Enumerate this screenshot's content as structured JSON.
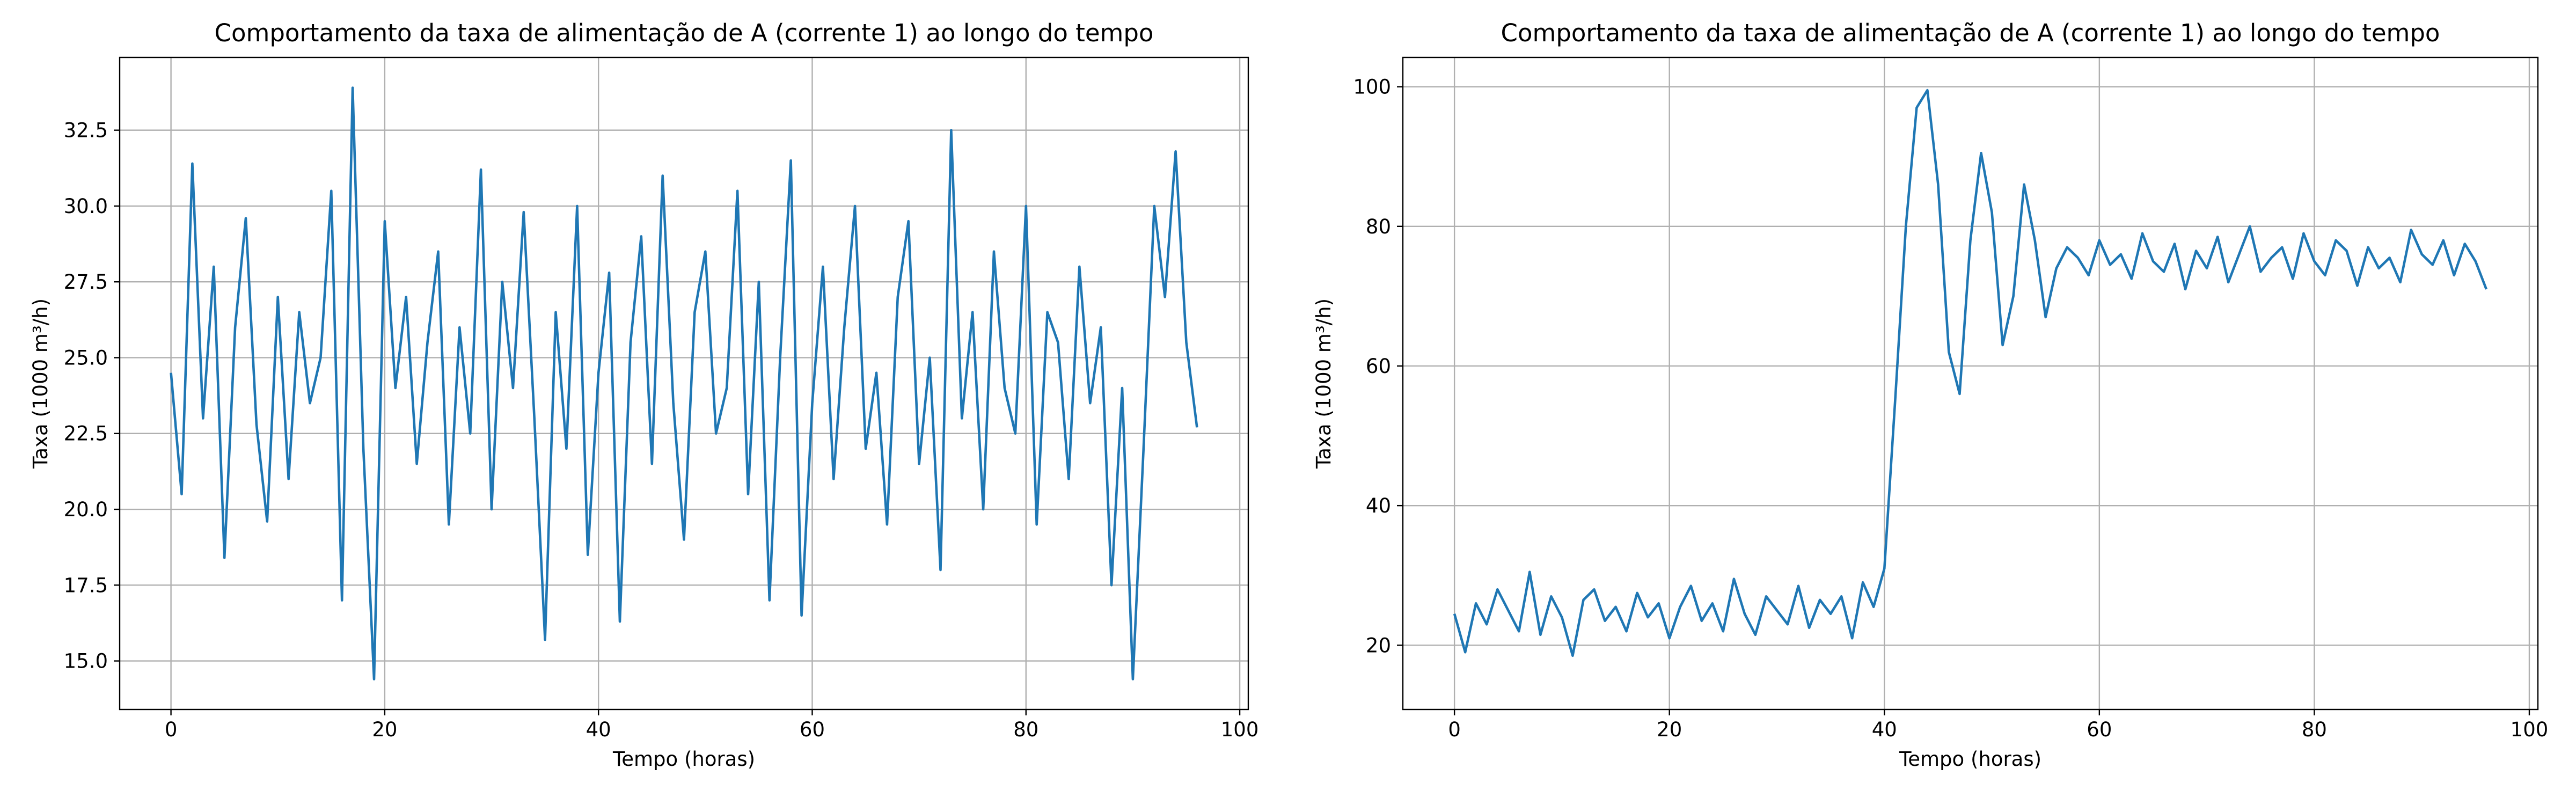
{
  "chart_data": [
    {
      "type": "line",
      "title": "Comportamento da taxa de alimentação de A (corrente 1) ao longo do tempo",
      "xlabel": "Tempo (horas)",
      "ylabel": "Taxa (1000 m³/h)",
      "x": [
        0,
        1,
        2,
        3,
        4,
        5,
        6,
        7,
        8,
        9,
        10,
        11,
        12,
        13,
        14,
        15,
        16,
        17,
        18,
        19,
        20,
        21,
        22,
        23,
        24,
        25,
        26,
        27,
        28,
        29,
        30,
        31,
        32,
        33,
        34,
        35,
        36,
        37,
        38,
        39,
        40,
        41,
        42,
        43,
        44,
        45,
        46,
        47,
        48,
        49,
        50,
        51,
        52,
        53,
        54,
        55,
        56,
        57,
        58,
        59,
        60,
        61,
        62,
        63,
        64,
        65,
        66,
        67,
        68,
        69,
        70,
        71,
        72,
        73,
        74,
        75,
        76,
        77,
        78,
        79,
        80,
        81,
        82,
        83,
        84,
        85,
        86,
        87,
        88,
        89,
        90,
        91,
        92,
        93,
        94,
        95,
        96
      ],
      "series": [
        {
          "color": "#1f77b4",
          "values": [
            24.5,
            20.5,
            31.4,
            23.0,
            28.0,
            18.4,
            26.0,
            29.6,
            22.8,
            19.6,
            27.0,
            21.0,
            26.5,
            23.5,
            25.0,
            30.5,
            17.0,
            33.9,
            22.0,
            14.4,
            29.5,
            24.0,
            27.0,
            21.5,
            25.5,
            28.5,
            19.5,
            26.0,
            22.5,
            31.2,
            20.0,
            27.5,
            24.0,
            29.8,
            23.0,
            15.7,
            26.5,
            22.0,
            30.0,
            18.5,
            24.5,
            27.8,
            16.3,
            25.5,
            29.0,
            21.5,
            31.0,
            23.5,
            19.0,
            26.5,
            28.5,
            22.5,
            24.0,
            30.5,
            20.5,
            27.5,
            17.0,
            25.0,
            31.5,
            16.5,
            23.5,
            28.0,
            21.0,
            26.0,
            30.0,
            22.0,
            24.5,
            19.5,
            27.0,
            29.5,
            21.5,
            25.0,
            18.0,
            32.5,
            23.0,
            26.5,
            20.0,
            28.5,
            24.0,
            22.5,
            30.0,
            19.5,
            26.5,
            25.5,
            21.0,
            28.0,
            23.5,
            26.0,
            17.5,
            24.0,
            14.4,
            22.0,
            30.0,
            27.0,
            31.8,
            25.5,
            22.7
          ]
        }
      ],
      "xlim": [
        -4.8,
        100.8
      ],
      "xticks": [
        0,
        20,
        40,
        60,
        80,
        100
      ],
      "ylim": [
        13.4,
        34.9
      ],
      "yticks": [
        {
          "value": 15,
          "label": "15.0"
        },
        17.5,
        {
          "value": 20,
          "label": "20.0"
        },
        22.5,
        {
          "value": 25,
          "label": "25.0"
        },
        27.5,
        {
          "value": 30,
          "label": "30.0"
        },
        32.5
      ],
      "grid": true
    },
    {
      "type": "line",
      "title": "Comportamento da taxa de alimentação de A (corrente 1) ao longo do tempo",
      "xlabel": "Tempo (horas)",
      "ylabel": "Taxa (1000 m³/h)",
      "x": [
        0,
        1,
        2,
        3,
        4,
        5,
        6,
        7,
        8,
        9,
        10,
        11,
        12,
        13,
        14,
        15,
        16,
        17,
        18,
        19,
        20,
        21,
        22,
        23,
        24,
        25,
        26,
        27,
        28,
        29,
        30,
        31,
        32,
        33,
        34,
        35,
        36,
        37,
        38,
        39,
        40,
        41,
        42,
        43,
        44,
        45,
        46,
        47,
        48,
        49,
        50,
        51,
        52,
        53,
        54,
        55,
        56,
        57,
        58,
        59,
        60,
        61,
        62,
        63,
        64,
        65,
        66,
        67,
        68,
        69,
        70,
        71,
        72,
        73,
        74,
        75,
        76,
        77,
        78,
        79,
        80,
        81,
        82,
        83,
        84,
        85,
        86,
        87,
        88,
        89,
        90,
        91,
        92,
        93,
        94,
        95,
        96
      ],
      "series": [
        {
          "color": "#1f77b4",
          "values": [
            24.5,
            19.0,
            26.0,
            23.0,
            28.0,
            25.0,
            22.0,
            30.5,
            21.5,
            27.0,
            24.0,
            18.5,
            26.5,
            28.0,
            23.5,
            25.5,
            22.0,
            27.5,
            24.0,
            26.0,
            21.0,
            25.5,
            28.5,
            23.5,
            26.0,
            22.0,
            29.5,
            24.5,
            21.5,
            27.0,
            25.0,
            23.0,
            28.5,
            22.5,
            26.5,
            24.5,
            27.0,
            21.0,
            29.0,
            25.5,
            31.0,
            55.0,
            80.0,
            97.0,
            99.5,
            86.0,
            62.0,
            56.0,
            78.0,
            90.5,
            82.0,
            63.0,
            70.0,
            86.0,
            78.0,
            67.0,
            74.0,
            77.0,
            75.5,
            73.0,
            78.0,
            74.5,
            76.0,
            72.5,
            79.0,
            75.0,
            73.5,
            77.5,
            71.0,
            76.5,
            74.0,
            78.5,
            72.0,
            76.0,
            80.0,
            73.5,
            75.5,
            77.0,
            72.5,
            79.0,
            75.0,
            73.0,
            78.0,
            76.5,
            71.5,
            77.0,
            74.0,
            75.5,
            72.0,
            79.5,
            76.0,
            74.5,
            78.0,
            73.0,
            77.5,
            75.0,
            71.0
          ]
        }
      ],
      "xlim": [
        -4.8,
        100.8
      ],
      "xticks": [
        0,
        20,
        40,
        60,
        80,
        100
      ],
      "ylim": [
        10.8,
        104.2
      ],
      "yticks": [
        20,
        40,
        60,
        80,
        100
      ],
      "grid": true
    }
  ]
}
